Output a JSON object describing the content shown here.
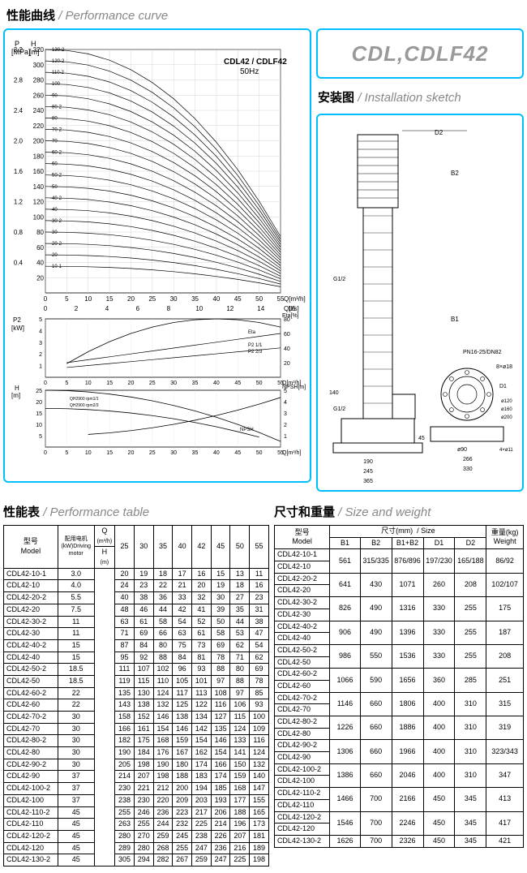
{
  "titles": {
    "perf_curve_cn": "性能曲线",
    "perf_curve_en": "/ Performance curve",
    "install_cn": "安装图",
    "install_en": "/ Installation sketch",
    "perf_table_cn": "性能表",
    "perf_table_en": "/ Performance table",
    "size_weight_cn": "尺寸和重量",
    "size_weight_en": "/ Size and weight"
  },
  "logo": "CDL,CDLF42",
  "chart": {
    "title": "CDL42 / CDLF42\n50Hz",
    "main": {
      "y1_label": "P\n[MPa]",
      "y2_label": "H\n[m]",
      "x1_label": "Q[m³/h]",
      "x2_label": "Q[l/s]",
      "y_mpa": [
        0.4,
        0.8,
        1.2,
        1.6,
        2.0,
        2.4,
        2.8,
        3.2
      ],
      "y_m": [
        20,
        40,
        60,
        80,
        100,
        120,
        140,
        160,
        180,
        200,
        220,
        240,
        260,
        280,
        300,
        320
      ],
      "x_mh": [
        0,
        5,
        10,
        15,
        20,
        25,
        30,
        35,
        40,
        45,
        50,
        55
      ],
      "x_ls": [
        0,
        2,
        4,
        6,
        8,
        10,
        12,
        14,
        16
      ],
      "curve_labels": [
        "-130-2",
        "-120-2",
        "-110-2",
        "-100",
        "-90",
        "-80-2",
        "-80",
        "-70-2",
        "-70",
        "-60-2",
        "-60",
        "-50-2",
        "-50",
        "-40-2",
        "-40",
        "-30-2",
        "-30",
        "-20-2",
        "-20",
        "-10-1"
      ]
    },
    "p2": {
      "y_label": "P2\n[kW]",
      "y_ticks": [
        1,
        2,
        3,
        4,
        5
      ],
      "x_ticks": [
        0,
        5,
        10,
        15,
        20,
        25,
        30,
        35,
        40,
        45,
        50,
        55
      ],
      "x_label": "Q[m³/h]",
      "eta_label": "Eta[%]",
      "eta_ticks": [
        20,
        40,
        60,
        80
      ],
      "legend": [
        "Eta",
        "P2 1/1",
        "P2 2/3"
      ]
    },
    "npsh": {
      "y_label": "H\n[m]",
      "y_ticks": [
        5,
        10,
        15,
        20,
        25
      ],
      "npsh_label": "NPSH[m]",
      "npsh_ticks": [
        1,
        2,
        3,
        4,
        5
      ],
      "x_ticks": [
        0,
        5,
        10,
        15,
        20,
        25,
        30,
        35,
        40,
        45,
        50,
        55
      ],
      "x_label": "Q[m³/h]",
      "legend": [
        "QH2900 rpm1/1",
        "QH2900 rpm2/3",
        "NPSH"
      ]
    }
  },
  "sketch": {
    "dims": [
      "D2",
      "D1",
      "B2",
      "B1",
      "G1/2",
      "G1/2",
      "PN16-25/DN82",
      "190",
      "245",
      "365",
      "140",
      "45",
      "ø90",
      "266",
      "330",
      "8×ø18",
      "4×ø11",
      "ø120",
      "ø160",
      "ø200"
    ]
  },
  "perf_table": {
    "headers": {
      "model_cn": "型号",
      "model_en": "Model",
      "motor_cn": "配用电机",
      "motor_en": "(kW)Driving motor",
      "q_label": "Q",
      "q_unit": "(m³/h)",
      "h_label": "H",
      "h_unit": "(m)"
    },
    "q_cols": [
      "25",
      "30",
      "35",
      "40",
      "42",
      "45",
      "50",
      "55"
    ],
    "rows": [
      [
        "CDL42-10-1",
        "3.0",
        "20",
        "19",
        "18",
        "17",
        "16",
        "15",
        "13",
        "11"
      ],
      [
        "CDL42-10",
        "4.0",
        "24",
        "23",
        "22",
        "21",
        "20",
        "19",
        "18",
        "16"
      ],
      [
        "CDL42-20-2",
        "5.5",
        "40",
        "38",
        "36",
        "33",
        "32",
        "30",
        "27",
        "23"
      ],
      [
        "CDL42-20",
        "7.5",
        "48",
        "46",
        "44",
        "42",
        "41",
        "39",
        "35",
        "31"
      ],
      [
        "CDL42-30-2",
        "11",
        "63",
        "61",
        "58",
        "54",
        "52",
        "50",
        "44",
        "38"
      ],
      [
        "CDL42-30",
        "11",
        "71",
        "69",
        "66",
        "63",
        "61",
        "58",
        "53",
        "47"
      ],
      [
        "CDL42-40-2",
        "15",
        "87",
        "84",
        "80",
        "75",
        "73",
        "69",
        "62",
        "54"
      ],
      [
        "CDL42-40",
        "15",
        "95",
        "92",
        "88",
        "84",
        "81",
        "78",
        "71",
        "62"
      ],
      [
        "CDL42-50-2",
        "18.5",
        "111",
        "107",
        "102",
        "96",
        "93",
        "88",
        "80",
        "69"
      ],
      [
        "CDL42-50",
        "18.5",
        "119",
        "115",
        "110",
        "105",
        "101",
        "97",
        "88",
        "78"
      ],
      [
        "CDL42-60-2",
        "22",
        "135",
        "130",
        "124",
        "117",
        "113",
        "108",
        "97",
        "85"
      ],
      [
        "CDL42-60",
        "22",
        "143",
        "138",
        "132",
        "125",
        "122",
        "116",
        "106",
        "93"
      ],
      [
        "CDL42-70-2",
        "30",
        "158",
        "152",
        "146",
        "138",
        "134",
        "127",
        "115",
        "100"
      ],
      [
        "CDL42-70",
        "30",
        "166",
        "161",
        "154",
        "146",
        "142",
        "135",
        "124",
        "109"
      ],
      [
        "CDL42-80-2",
        "30",
        "182",
        "175",
        "168",
        "159",
        "154",
        "146",
        "133",
        "116"
      ],
      [
        "CDL42-80",
        "30",
        "190",
        "184",
        "176",
        "167",
        "162",
        "154",
        "141",
        "124"
      ],
      [
        "CDL42-90-2",
        "30",
        "205",
        "198",
        "190",
        "180",
        "174",
        "166",
        "150",
        "132"
      ],
      [
        "CDL42-90",
        "37",
        "214",
        "207",
        "198",
        "188",
        "183",
        "174",
        "159",
        "140"
      ],
      [
        "CDL42-100-2",
        "37",
        "230",
        "221",
        "212",
        "200",
        "194",
        "185",
        "168",
        "147"
      ],
      [
        "CDL42-100",
        "37",
        "238",
        "230",
        "220",
        "209",
        "203",
        "193",
        "177",
        "155"
      ],
      [
        "CDL42-110-2",
        "45",
        "255",
        "246",
        "236",
        "223",
        "217",
        "206",
        "188",
        "165"
      ],
      [
        "CDL42-110",
        "45",
        "263",
        "255",
        "244",
        "232",
        "225",
        "214",
        "196",
        "173"
      ],
      [
        "CDL42-120-2",
        "45",
        "280",
        "270",
        "259",
        "245",
        "238",
        "226",
        "207",
        "181"
      ],
      [
        "CDL42-120",
        "45",
        "289",
        "280",
        "268",
        "255",
        "247",
        "236",
        "216",
        "189"
      ],
      [
        "CDL42-130-2",
        "45",
        "305",
        "294",
        "282",
        "267",
        "259",
        "247",
        "225",
        "198"
      ]
    ]
  },
  "size_table": {
    "headers": {
      "model_cn": "型号",
      "model_en": "Model",
      "size_cn": "尺寸(mm)",
      "size_en": "/ Size",
      "weight_cn": "重量(kg)",
      "weight_en": "Weight",
      "cols": [
        "B1",
        "B2",
        "B1+B2",
        "D1",
        "D2"
      ]
    },
    "rows": [
      [
        [
          "CDL42-10-1",
          "CDL42-10"
        ],
        "561",
        "315/335",
        "876/896",
        "197/230",
        "165/188",
        "86/92"
      ],
      [
        [
          "CDL42-20-2",
          "CDL42-20"
        ],
        "641",
        "430",
        "1071",
        "260",
        "208",
        "102/107"
      ],
      [
        [
          "CDL42-30-2",
          "CDL42-30"
        ],
        "826",
        "490",
        "1316",
        "330",
        "255",
        "175"
      ],
      [
        [
          "CDL42-40-2",
          "CDL42-40"
        ],
        "906",
        "490",
        "1396",
        "330",
        "255",
        "187"
      ],
      [
        [
          "CDL42-50-2",
          "CDL42-50"
        ],
        "986",
        "550",
        "1536",
        "330",
        "255",
        "208"
      ],
      [
        [
          "CDL42-60-2",
          "CDL42-60"
        ],
        "1066",
        "590",
        "1656",
        "360",
        "285",
        "251"
      ],
      [
        [
          "CDL42-70-2",
          "CDL42-70"
        ],
        "1146",
        "660",
        "1806",
        "400",
        "310",
        "315"
      ],
      [
        [
          "CDL42-80-2",
          "CDL42-80"
        ],
        "1226",
        "660",
        "1886",
        "400",
        "310",
        "319"
      ],
      [
        [
          "CDL42-90-2",
          "CDL42-90"
        ],
        "1306",
        "660",
        "1966",
        "400",
        "310",
        "323/343"
      ],
      [
        [
          "CDL42-100-2",
          "CDL42-100"
        ],
        "1386",
        "660",
        "2046",
        "400",
        "310",
        "347"
      ],
      [
        [
          "CDL42-110-2",
          "CDL42-110"
        ],
        "1466",
        "700",
        "2166",
        "450",
        "345",
        "413"
      ],
      [
        [
          "CDL42-120-2",
          "CDL42-120"
        ],
        "1546",
        "700",
        "2246",
        "450",
        "345",
        "417"
      ],
      [
        [
          "CDL42-130-2"
        ],
        "1626",
        "700",
        "2326",
        "450",
        "345",
        "421"
      ]
    ]
  }
}
